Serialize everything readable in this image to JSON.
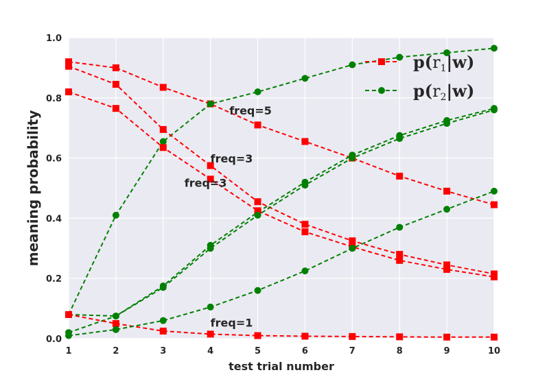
{
  "chart_data": {
    "type": "line",
    "title": "",
    "xlabel": "test trial number",
    "ylabel": "meaning probability",
    "xlim": [
      1,
      10
    ],
    "ylim": [
      0,
      1
    ],
    "xticks": [
      "1",
      "2",
      "3",
      "4",
      "5",
      "6",
      "7",
      "8",
      "9",
      "10"
    ],
    "yticks": [
      "0.0",
      "0.2",
      "0.4",
      "0.6",
      "0.8",
      "1.0"
    ],
    "grid": true,
    "background": "#EAEAF2",
    "legend_position": "top-right",
    "x": [
      1,
      2,
      3,
      4,
      5,
      6,
      7,
      8,
      9,
      10
    ],
    "legend": [
      {
        "prefix": "p(",
        "r": "r",
        "sub": "1",
        "suffix": "|w)",
        "color": "#FF0000",
        "marker": "square"
      },
      {
        "prefix": "p(",
        "r": "r",
        "sub": "2",
        "suffix": "|w)",
        "color": "#008000",
        "marker": "circle"
      }
    ],
    "series": [
      {
        "values": [
          0.92,
          0.9,
          0.835,
          0.78,
          0.71,
          0.655,
          0.6,
          0.54,
          0.49,
          0.445
        ],
        "color": "#FF0000",
        "marker": "square"
      },
      {
        "values": [
          0.08,
          0.41,
          0.655,
          0.78,
          0.82,
          0.865,
          0.91,
          0.935,
          0.95,
          0.965
        ],
        "color": "#008000",
        "marker": "circle"
      },
      {
        "values": [
          0.905,
          0.845,
          0.695,
          0.575,
          0.455,
          0.38,
          0.325,
          0.28,
          0.245,
          0.215
        ],
        "color": "#FF0000",
        "marker": "square"
      },
      {
        "values": [
          0.02,
          0.075,
          0.175,
          0.31,
          0.42,
          0.52,
          0.61,
          0.675,
          0.725,
          0.765
        ],
        "color": "#008000",
        "marker": "circle"
      },
      {
        "values": [
          0.82,
          0.765,
          0.635,
          0.53,
          0.425,
          0.355,
          0.305,
          0.26,
          0.23,
          0.205
        ],
        "color": "#FF0000",
        "marker": "square"
      },
      {
        "values": [
          0.08,
          0.075,
          0.17,
          0.3,
          0.41,
          0.51,
          0.6,
          0.665,
          0.715,
          0.76
        ],
        "color": "#008000",
        "marker": "circle"
      },
      {
        "values": [
          0.08,
          0.05,
          0.025,
          0.015,
          0.01,
          0.008,
          0.007,
          0.006,
          0.005,
          0.005
        ],
        "color": "#FF0000",
        "marker": "square"
      },
      {
        "values": [
          0.01,
          0.03,
          0.06,
          0.105,
          0.16,
          0.225,
          0.3,
          0.37,
          0.43,
          0.49
        ],
        "color": "#008000",
        "marker": "circle"
      }
    ],
    "annotations": [
      {
        "text": "freq=5",
        "x": 4.4,
        "y": 0.745
      },
      {
        "text": "freq=3",
        "x": 4.0,
        "y": 0.585
      },
      {
        "text": "freq=3",
        "x": 3.45,
        "y": 0.505
      },
      {
        "text": "freq=1",
        "x": 4.0,
        "y": 0.04
      }
    ]
  }
}
